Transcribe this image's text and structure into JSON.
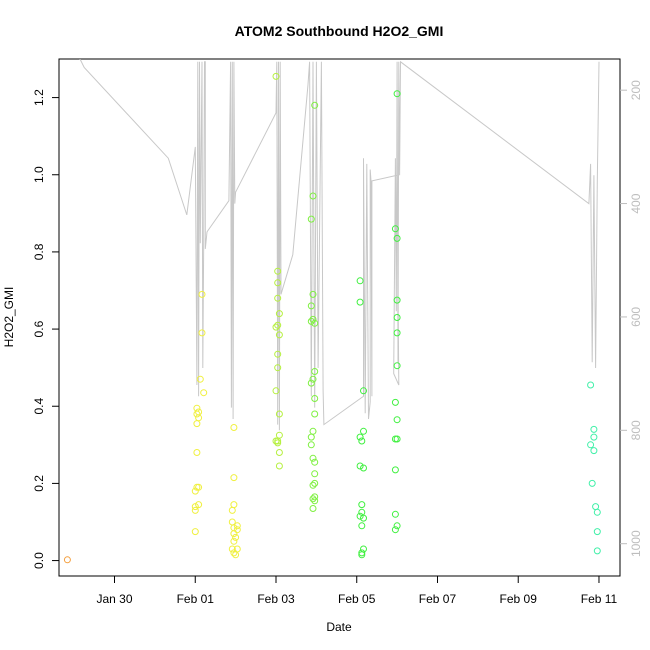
{
  "chart_data": {
    "type": "scatter",
    "title": "ATOM2 Southbound H2O2_GMI",
    "xlabel": "Date",
    "ylabel": "H2O2_GMI",
    "xlim": [
      "2017-01-28T15:00",
      "2017-02-11T12:30"
    ],
    "ylim": [
      -0.04,
      1.3
    ],
    "x_ticks": [
      {
        "date": "2017-01-30",
        "label": "Jan 30"
      },
      {
        "date": "2017-02-01",
        "label": "Feb 01"
      },
      {
        "date": "2017-02-03",
        "label": "Feb 03"
      },
      {
        "date": "2017-02-05",
        "label": "Feb 05"
      },
      {
        "date": "2017-02-07",
        "label": "Feb 07"
      },
      {
        "date": "2017-02-09",
        "label": "Feb 09"
      },
      {
        "date": "2017-02-11",
        "label": "Feb 11"
      }
    ],
    "y_ticks": [
      {
        "value": 0.0,
        "label": "0.0"
      },
      {
        "value": 0.2,
        "label": "0.2"
      },
      {
        "value": 0.4,
        "label": "0.4"
      },
      {
        "value": 0.6,
        "label": "0.6"
      },
      {
        "value": 0.8,
        "label": "0.8"
      },
      {
        "value": 1.0,
        "label": "1.0"
      },
      {
        "value": 1.2,
        "label": "1.2"
      }
    ],
    "right_axis": {
      "range": [
        1057,
        145
      ],
      "ticks": [
        {
          "value": 200,
          "label": "200"
        },
        {
          "value": 400,
          "label": "400"
        },
        {
          "value": 600,
          "label": "600"
        },
        {
          "value": 800,
          "label": "800"
        },
        {
          "value": 1000,
          "label": "1000"
        }
      ],
      "color": "#bdbdbd"
    },
    "grid": false,
    "legend": "none",
    "marker": "open-circle",
    "profile_line_color": "#c8c8c8",
    "profile_line": [
      [
        "2017-01-28T20:00",
        100
      ],
      [
        "2017-01-29T06:00",
        160
      ],
      [
        "2017-01-31T08:00",
        320
      ],
      [
        "2017-01-31T19:00",
        420
      ],
      [
        "2017-02-01T00:00",
        300
      ],
      [
        "2017-02-01T01:00",
        720
      ],
      [
        "2017-02-01T01:30",
        150
      ],
      [
        "2017-02-01T02:00",
        740
      ],
      [
        "2017-02-01T02:30",
        150
      ],
      [
        "2017-02-01T03:00",
        470
      ],
      [
        "2017-02-01T04:00",
        150
      ],
      [
        "2017-02-01T04:30",
        690
      ],
      [
        "2017-02-01T05:00",
        470
      ],
      [
        "2017-02-01T05:30",
        150
      ],
      [
        "2017-02-01T06:00",
        150
      ],
      [
        "2017-02-01T06:00",
        480
      ],
      [
        "2017-02-01T07:00",
        450
      ],
      [
        "2017-02-01T20:00",
        395
      ],
      [
        "2017-02-01T21:00",
        150
      ],
      [
        "2017-02-01T21:30",
        760
      ],
      [
        "2017-02-01T22:00",
        150
      ],
      [
        "2017-02-01T22:30",
        780
      ],
      [
        "2017-02-01T23:00",
        150
      ],
      [
        "2017-02-01T23:30",
        400
      ],
      [
        "2017-02-02T00:00",
        380
      ],
      [
        "2017-02-03T00:00",
        240
      ],
      [
        "2017-02-03T00:30",
        150
      ],
      [
        "2017-02-03T01:00",
        790
      ],
      [
        "2017-02-03T01:30",
        150
      ],
      [
        "2017-02-03T02:00",
        800
      ],
      [
        "2017-02-03T02:30",
        150
      ],
      [
        "2017-02-03T03:00",
        560
      ],
      [
        "2017-02-03T10:00",
        490
      ],
      [
        "2017-02-03T19:00",
        190
      ],
      [
        "2017-02-03T20:00",
        150
      ],
      [
        "2017-02-03T21:00",
        740
      ],
      [
        "2017-02-03T22:00",
        150
      ],
      [
        "2017-02-03T23:00",
        760
      ],
      [
        "2017-02-04T00:00",
        150
      ],
      [
        "2017-02-04T01:00",
        690
      ],
      [
        "2017-02-04T03:00",
        150
      ],
      [
        "2017-02-04T04:00",
        730
      ],
      [
        "2017-02-04T04:30",
        790
      ],
      [
        "2017-02-05T04:00",
        740
      ],
      [
        "2017-02-05T04:00",
        320
      ],
      [
        "2017-02-05T05:00",
        770
      ],
      [
        "2017-02-05T06:00",
        330
      ],
      [
        "2017-02-05T07:00",
        780
      ],
      [
        "2017-02-05T08:00",
        750
      ],
      [
        "2017-02-05T08:00",
        340
      ],
      [
        "2017-02-05T08:30",
        360
      ],
      [
        "2017-02-05T09:00",
        740
      ],
      [
        "2017-02-05T09:00",
        360
      ],
      [
        "2017-02-06T00:00",
        350
      ],
      [
        "2017-02-06T01:00",
        720
      ],
      [
        "2017-02-05T22:00",
        700
      ],
      [
        "2017-02-05T23:00",
        320
      ],
      [
        "2017-02-05T23:30",
        590
      ],
      [
        "2017-02-06T00:00",
        150
      ],
      [
        "2017-02-06T00:30",
        680
      ],
      [
        "2017-02-06T01:00",
        150
      ],
      [
        "2017-02-06T01:30",
        350
      ],
      [
        "2017-02-06T02:00",
        150
      ],
      [
        "2017-02-10T18:00",
        400
      ],
      [
        "2017-02-10T19:00",
        330
      ],
      [
        "2017-02-10T20:00",
        680
      ],
      [
        "2017-02-10T21:00",
        350
      ],
      [
        "2017-02-10T22:00",
        690
      ],
      [
        "2017-02-10T23:00",
        360
      ],
      [
        "2017-02-11T00:00",
        150
      ]
    ],
    "series": [
      {
        "color": "#f4a040",
        "points": [
          [
            "2017-01-28T20:00",
            0.002
          ]
        ]
      },
      {
        "color": "#f0f040",
        "points": [
          [
            "2017-02-01T00:00",
            0.075
          ],
          [
            "2017-02-01T00:00",
            0.13
          ],
          [
            "2017-02-01T00:00",
            0.14
          ],
          [
            "2017-02-01T00:00",
            0.18
          ],
          [
            "2017-02-01T01:00",
            0.19
          ],
          [
            "2017-02-01T01:00",
            0.28
          ],
          [
            "2017-02-01T01:00",
            0.355
          ],
          [
            "2017-02-01T01:00",
            0.38
          ],
          [
            "2017-02-01T01:00",
            0.395
          ],
          [
            "2017-02-01T02:00",
            0.145
          ],
          [
            "2017-02-01T02:00",
            0.19
          ],
          [
            "2017-02-01T02:00",
            0.37
          ],
          [
            "2017-02-01T02:00",
            0.385
          ],
          [
            "2017-02-01T03:00",
            0.47
          ],
          [
            "2017-02-01T04:00",
            0.59
          ],
          [
            "2017-02-01T04:00",
            0.69
          ],
          [
            "2017-02-01T05:00",
            0.435
          ],
          [
            "2017-02-01T22:00",
            0.1
          ],
          [
            "2017-02-01T22:00",
            0.13
          ],
          [
            "2017-02-01T22:00",
            0.03
          ],
          [
            "2017-02-01T23:00",
            0.345
          ],
          [
            "2017-02-01T23:00",
            0.215
          ],
          [
            "2017-02-01T23:00",
            0.145
          ],
          [
            "2017-02-01T23:00",
            0.085
          ],
          [
            "2017-02-01T23:00",
            0.07
          ],
          [
            "2017-02-01T23:00",
            0.05
          ],
          [
            "2017-02-01T23:00",
            0.02
          ],
          [
            "2017-02-02T00:00",
            0.015
          ],
          [
            "2017-02-02T00:00",
            0.06
          ],
          [
            "2017-02-02T01:00",
            0.09
          ],
          [
            "2017-02-02T01:00",
            0.08
          ],
          [
            "2017-02-02T01:00",
            0.03
          ]
        ]
      },
      {
        "color": "#b6f040",
        "points": [
          [
            "2017-02-03T00:00",
            1.255
          ],
          [
            "2017-02-03T00:00",
            0.605
          ],
          [
            "2017-02-03T00:00",
            0.44
          ],
          [
            "2017-02-03T00:00",
            0.31
          ],
          [
            "2017-02-03T01:00",
            0.75
          ],
          [
            "2017-02-03T01:00",
            0.72
          ],
          [
            "2017-02-03T01:00",
            0.68
          ],
          [
            "2017-02-03T01:00",
            0.61
          ],
          [
            "2017-02-03T01:00",
            0.535
          ],
          [
            "2017-02-03T01:00",
            0.5
          ],
          [
            "2017-02-03T01:00",
            0.31
          ],
          [
            "2017-02-03T01:00",
            0.305
          ],
          [
            "2017-02-03T02:00",
            0.64
          ],
          [
            "2017-02-03T02:00",
            0.585
          ],
          [
            "2017-02-03T02:00",
            0.38
          ],
          [
            "2017-02-03T02:00",
            0.325
          ],
          [
            "2017-02-03T02:00",
            0.28
          ],
          [
            "2017-02-03T02:00",
            0.245
          ]
        ]
      },
      {
        "color": "#7ef040",
        "points": [
          [
            "2017-02-03T21:00",
            0.885
          ],
          [
            "2017-02-03T21:00",
            0.66
          ],
          [
            "2017-02-03T21:00",
            0.62
          ],
          [
            "2017-02-03T21:00",
            0.46
          ],
          [
            "2017-02-03T21:00",
            0.32
          ],
          [
            "2017-02-03T21:00",
            0.3
          ],
          [
            "2017-02-03T22:00",
            0.945
          ],
          [
            "2017-02-03T22:00",
            0.69
          ],
          [
            "2017-02-03T22:00",
            0.625
          ],
          [
            "2017-02-03T22:00",
            0.47
          ],
          [
            "2017-02-03T22:00",
            0.335
          ],
          [
            "2017-02-03T22:00",
            0.265
          ],
          [
            "2017-02-03T22:00",
            0.195
          ],
          [
            "2017-02-03T22:00",
            0.16
          ],
          [
            "2017-02-03T22:00",
            0.135
          ],
          [
            "2017-02-03T23:00",
            1.18
          ],
          [
            "2017-02-03T23:00",
            0.615
          ],
          [
            "2017-02-03T23:00",
            0.49
          ],
          [
            "2017-02-03T23:00",
            0.42
          ],
          [
            "2017-02-03T23:00",
            0.38
          ],
          [
            "2017-02-03T23:00",
            0.255
          ],
          [
            "2017-02-03T23:00",
            0.225
          ],
          [
            "2017-02-03T23:00",
            0.2
          ],
          [
            "2017-02-03T23:00",
            0.165
          ],
          [
            "2017-02-03T23:00",
            0.155
          ]
        ]
      },
      {
        "color": "#40f040",
        "points": [
          [
            "2017-02-05T02:00",
            0.725
          ],
          [
            "2017-02-05T02:00",
            0.67
          ],
          [
            "2017-02-05T02:00",
            0.32
          ],
          [
            "2017-02-05T02:00",
            0.245
          ],
          [
            "2017-02-05T02:00",
            0.115
          ],
          [
            "2017-02-05T03:00",
            0.31
          ],
          [
            "2017-02-05T03:00",
            0.145
          ],
          [
            "2017-02-05T03:00",
            0.125
          ],
          [
            "2017-02-05T03:00",
            0.09
          ],
          [
            "2017-02-05T03:00",
            0.02
          ],
          [
            "2017-02-05T03:00",
            0.015
          ],
          [
            "2017-02-05T04:00",
            0.44
          ],
          [
            "2017-02-05T04:00",
            0.335
          ],
          [
            "2017-02-05T04:00",
            0.24
          ],
          [
            "2017-02-05T04:00",
            0.11
          ],
          [
            "2017-02-05T04:00",
            0.03
          ],
          [
            "2017-02-05T23:00",
            0.86
          ],
          [
            "2017-02-05T23:00",
            0.41
          ],
          [
            "2017-02-05T23:00",
            0.315
          ],
          [
            "2017-02-05T23:00",
            0.235
          ],
          [
            "2017-02-05T23:00",
            0.12
          ],
          [
            "2017-02-05T23:00",
            0.08
          ],
          [
            "2017-02-06T00:00",
            1.21
          ],
          [
            "2017-02-06T00:00",
            0.835
          ],
          [
            "2017-02-06T00:00",
            0.675
          ],
          [
            "2017-02-06T00:00",
            0.63
          ],
          [
            "2017-02-06T00:00",
            0.59
          ],
          [
            "2017-02-06T00:00",
            0.505
          ],
          [
            "2017-02-06T00:00",
            0.365
          ],
          [
            "2017-02-06T00:00",
            0.315
          ],
          [
            "2017-02-06T00:00",
            0.09
          ]
        ]
      },
      {
        "color": "#40f0a8",
        "points": [
          [
            "2017-02-10T19:00",
            0.455
          ],
          [
            "2017-02-10T19:00",
            0.3
          ],
          [
            "2017-02-10T20:00",
            0.2
          ],
          [
            "2017-02-10T21:00",
            0.34
          ],
          [
            "2017-02-10T21:00",
            0.32
          ],
          [
            "2017-02-10T21:00",
            0.285
          ],
          [
            "2017-02-10T22:00",
            0.14
          ],
          [
            "2017-02-10T23:00",
            0.125
          ],
          [
            "2017-02-10T23:00",
            0.075
          ],
          [
            "2017-02-10T23:00",
            0.025
          ]
        ]
      }
    ]
  }
}
